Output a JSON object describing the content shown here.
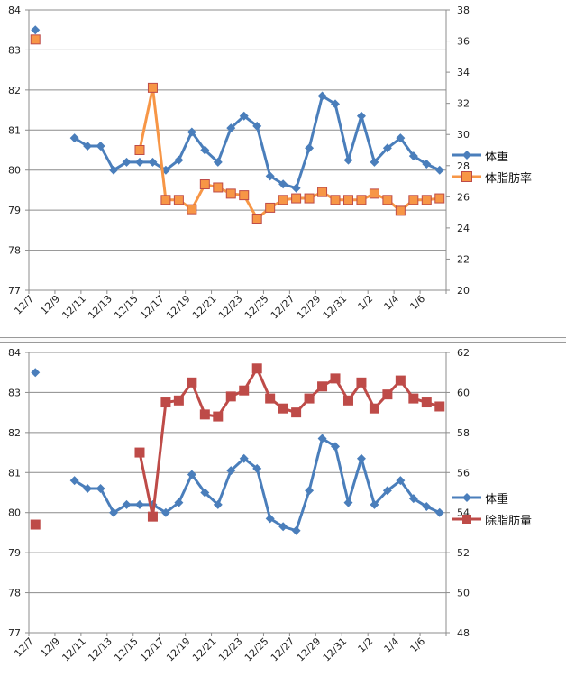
{
  "chart_data": [
    {
      "type": "line",
      "title": "",
      "dual_axis": true,
      "x": [
        "12/7",
        "12/8",
        "12/9",
        "12/10",
        "12/11",
        "12/12",
        "12/13",
        "12/14",
        "12/15",
        "12/16",
        "12/17",
        "12/18",
        "12/19",
        "12/20",
        "12/21",
        "12/22",
        "12/23",
        "12/24",
        "12/25",
        "12/26",
        "12/27",
        "12/28",
        "12/29",
        "12/30",
        "12/31",
        "1/1",
        "1/2",
        "1/3",
        "1/4",
        "1/5",
        "1/6",
        "1/7"
      ],
      "x_tick_labels": [
        "12/7",
        "12/9",
        "12/11",
        "12/13",
        "12/15",
        "12/17",
        "12/19",
        "12/21",
        "12/23",
        "12/25",
        "12/27",
        "12/29",
        "12/31",
        "1/2",
        "1/4",
        "1/6"
      ],
      "y_left": {
        "min": 77,
        "max": 84,
        "step": 1,
        "ticks": [
          "77",
          "78",
          "79",
          "80",
          "81",
          "82",
          "83",
          "84"
        ]
      },
      "y_right": {
        "min": 20,
        "max": 38,
        "step": 2,
        "ticks": [
          "20",
          "22",
          "24",
          "26",
          "28",
          "30",
          "32",
          "34",
          "36",
          "38"
        ]
      },
      "grid": true,
      "legend_position": "right",
      "series": [
        {
          "name": "体重",
          "axis": "left",
          "color": "#4a7ebb",
          "marker": "diamond",
          "values": [
            83.5,
            null,
            null,
            80.8,
            80.6,
            80.6,
            80.0,
            80.2,
            80.2,
            80.2,
            80.0,
            80.25,
            80.95,
            80.5,
            80.2,
            81.05,
            81.35,
            81.1,
            79.85,
            79.65,
            79.55,
            80.55,
            81.85,
            81.65,
            80.25,
            81.35,
            80.2,
            80.55,
            80.8,
            80.35,
            80.15,
            80.0
          ]
        },
        {
          "name": "体脂肪率",
          "axis": "right",
          "color": "#f79646",
          "marker_fill": "#f79646",
          "marker_stroke": "#be4b48",
          "marker": "square",
          "values": [
            36.1,
            null,
            null,
            null,
            null,
            null,
            null,
            null,
            29.0,
            33.0,
            25.8,
            25.8,
            25.2,
            26.8,
            26.6,
            26.2,
            26.1,
            24.6,
            25.3,
            25.8,
            25.9,
            25.9,
            26.3,
            25.8,
            25.8,
            25.8,
            26.2,
            25.8,
            25.1,
            25.8,
            25.8,
            25.9
          ]
        }
      ]
    },
    {
      "type": "line",
      "title": "",
      "dual_axis": true,
      "x": [
        "12/7",
        "12/8",
        "12/9",
        "12/10",
        "12/11",
        "12/12",
        "12/13",
        "12/14",
        "12/15",
        "12/16",
        "12/17",
        "12/18",
        "12/19",
        "12/20",
        "12/21",
        "12/22",
        "12/23",
        "12/24",
        "12/25",
        "12/26",
        "12/27",
        "12/28",
        "12/29",
        "12/30",
        "12/31",
        "1/1",
        "1/2",
        "1/3",
        "1/4",
        "1/5",
        "1/6",
        "1/7"
      ],
      "x_tick_labels": [
        "12/7",
        "12/9",
        "12/11",
        "12/13",
        "12/15",
        "12/17",
        "12/19",
        "12/21",
        "12/23",
        "12/25",
        "12/27",
        "12/29",
        "12/31",
        "1/2",
        "1/4",
        "1/6"
      ],
      "y_left": {
        "min": 77,
        "max": 84,
        "step": 1,
        "ticks": [
          "77",
          "78",
          "79",
          "80",
          "81",
          "82",
          "83",
          "84"
        ]
      },
      "y_right": {
        "min": 48,
        "max": 62,
        "step": 2,
        "ticks": [
          "48",
          "50",
          "52",
          "54",
          "56",
          "58",
          "60",
          "62"
        ]
      },
      "grid": true,
      "legend_position": "right",
      "series": [
        {
          "name": "体重",
          "axis": "left",
          "color": "#4a7ebb",
          "marker": "diamond",
          "values": [
            83.5,
            null,
            null,
            80.8,
            80.6,
            80.6,
            80.0,
            80.2,
            80.2,
            80.2,
            80.0,
            80.25,
            80.95,
            80.5,
            80.2,
            81.05,
            81.35,
            81.1,
            79.85,
            79.65,
            79.55,
            80.55,
            81.85,
            81.65,
            80.25,
            81.35,
            80.2,
            80.55,
            80.8,
            80.35,
            80.15,
            80.0
          ]
        },
        {
          "name": "除脂肪量",
          "axis": "right",
          "color": "#be4b48",
          "marker": "square",
          "values": [
            53.4,
            null,
            null,
            null,
            null,
            null,
            null,
            null,
            57.0,
            53.8,
            59.5,
            59.6,
            60.5,
            58.9,
            58.8,
            59.8,
            60.1,
            61.2,
            59.7,
            59.2,
            59.0,
            59.7,
            60.3,
            60.7,
            59.6,
            60.5,
            59.2,
            59.9,
            60.6,
            59.7,
            59.5,
            59.3
          ]
        }
      ]
    }
  ]
}
